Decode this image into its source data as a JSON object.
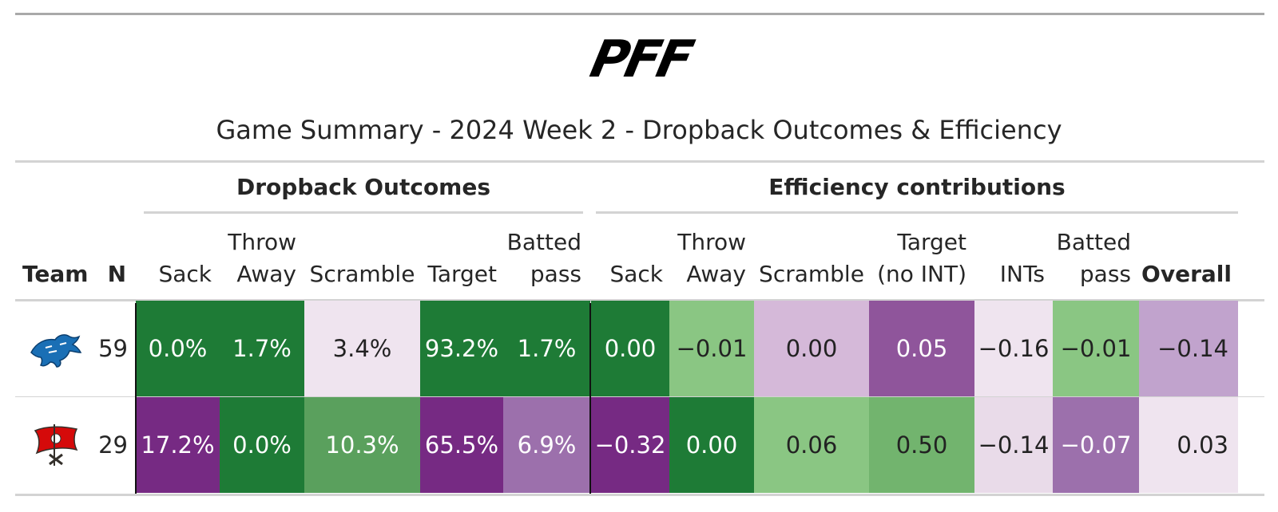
{
  "brand": "PFF",
  "title": "Game Summary - 2024 Week 2 - Dropback Outcomes & Efficiency",
  "groups": {
    "outcomes": "Dropback Outcomes",
    "efficiency": "Efficiency contributions"
  },
  "columns": {
    "team": "Team",
    "n": "N",
    "out_sack": "Sack",
    "out_throw_1": "Throw",
    "out_throw_2": "Away",
    "out_scramble": "Scramble",
    "out_target": "Target",
    "out_batted_1": "Batted",
    "out_batted_2": "pass",
    "eff_sack": "Sack",
    "eff_throw_1": "Throw",
    "eff_throw_2": "Away",
    "eff_scramble": "Scramble",
    "eff_target_1": "Target",
    "eff_target_2": "(no INT)",
    "eff_ints": "INTs",
    "eff_batted_1": "Batted",
    "eff_batted_2": "pass",
    "eff_overall": "Overall"
  },
  "colors": {
    "dark_green": "#1e7b36",
    "mid_green": "#5aa05d",
    "green": "#72b46e",
    "light_green": "#8ac683",
    "dark_purple": "#762a83",
    "purple": "#8f559b",
    "mid_purple": "#9c70ac",
    "light_purple": "#c1a3cd",
    "lighter_purple": "#d5b9d9",
    "pale_purple": "#e9dbe9",
    "near_white": "#efe4ef"
  },
  "rows": [
    {
      "team_logo": "lions-logo-icon",
      "n": "59",
      "out_sack": "0.0%",
      "out_throw": "1.7%",
      "out_scramble": "3.4%",
      "out_target": "93.2%",
      "out_batted": "1.7%",
      "eff_sack": "0.00",
      "eff_throw": "−0.01",
      "eff_scramble": "0.00",
      "eff_target": "0.05",
      "eff_ints": "−0.16",
      "eff_batted": "−0.01",
      "eff_overall": "−0.14"
    },
    {
      "team_logo": "buccaneers-logo-icon",
      "n": "29",
      "out_sack": "17.2%",
      "out_throw": "0.0%",
      "out_scramble": "10.3%",
      "out_target": "65.5%",
      "out_batted": "6.9%",
      "eff_sack": "−0.32",
      "eff_throw": "0.00",
      "eff_scramble": "0.06",
      "eff_target": "0.50",
      "eff_ints": "−0.14",
      "eff_batted": "−0.07",
      "eff_overall": "0.03"
    }
  ]
}
